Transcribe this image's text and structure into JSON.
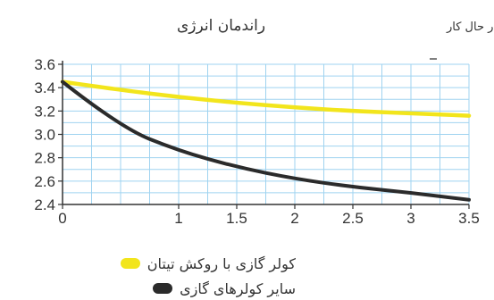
{
  "chart_data": {
    "type": "line",
    "title": "راندمان انرژی",
    "subtitle": "زمان در حال کار",
    "xlabel": "",
    "ylabel": "",
    "xlim": [
      0,
      3.5
    ],
    "ylim": [
      2.4,
      3.6
    ],
    "x_ticks": [
      "0",
      "1",
      "1.5",
      "2",
      "2.5",
      "3",
      "3.5"
    ],
    "y_ticks": [
      "2.4",
      "2.6",
      "2.8",
      "3.0",
      "3.2",
      "3.4",
      "3.6"
    ],
    "grid": true,
    "legend_position": "bottom",
    "series": [
      {
        "name": "کولر گازی با روکش تیتان",
        "color": "#f2e51c",
        "x": [
          0,
          0.5,
          1,
          1.5,
          2,
          2.5,
          3,
          3.5
        ],
        "y": [
          3.45,
          3.38,
          3.32,
          3.27,
          3.23,
          3.2,
          3.18,
          3.16
        ]
      },
      {
        "name": "سایر کولرهای گازی",
        "color": "#2b2b2b",
        "x": [
          0,
          0.5,
          1,
          1.5,
          2,
          2.5,
          3,
          3.5
        ],
        "y": [
          3.45,
          3.06,
          2.86,
          2.72,
          2.62,
          2.55,
          2.5,
          2.44
        ]
      }
    ]
  }
}
